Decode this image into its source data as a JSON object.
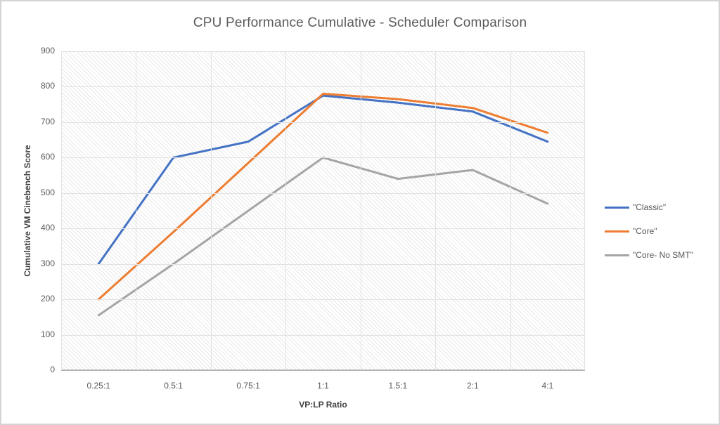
{
  "chart_data": {
    "type": "line",
    "title": "CPU Performance Cumulative - Scheduler Comparison",
    "xlabel": "VP:LP Ratio",
    "ylabel": "Cumulative VM Cinebench Score",
    "categories": [
      "0.25:1",
      "0.5:1",
      "0.75:1",
      "1:1",
      "1.5:1",
      "2:1",
      "4:1"
    ],
    "series": [
      {
        "name": "\"Classic\"",
        "color": "#4472C4",
        "values": [
          300,
          600,
          645,
          775,
          755,
          730,
          645
        ]
      },
      {
        "name": "\"Core\"",
        "color": "#ED7D31",
        "values": [
          200,
          390,
          585,
          780,
          765,
          740,
          670
        ]
      },
      {
        "name": "\"Core- No SMT\"",
        "color": "#A5A5A5",
        "values": [
          155,
          300,
          450,
          600,
          540,
          565,
          470
        ]
      }
    ],
    "ylim": [
      0,
      900
    ],
    "yticks": [
      0,
      100,
      200,
      300,
      400,
      500,
      600,
      700,
      800,
      900
    ],
    "grid": true,
    "legend_position": "right",
    "plot_area_pattern": "diagonal-hatch",
    "colors": {
      "title_text": "#595959",
      "axis_tick_text": "#595959",
      "axis_title_text": "#404040",
      "gridline": "#e2e2e2",
      "x_axis_line": "#b3b3b3",
      "frame_border": "#d4d4d4",
      "background": "#ffffff"
    }
  }
}
